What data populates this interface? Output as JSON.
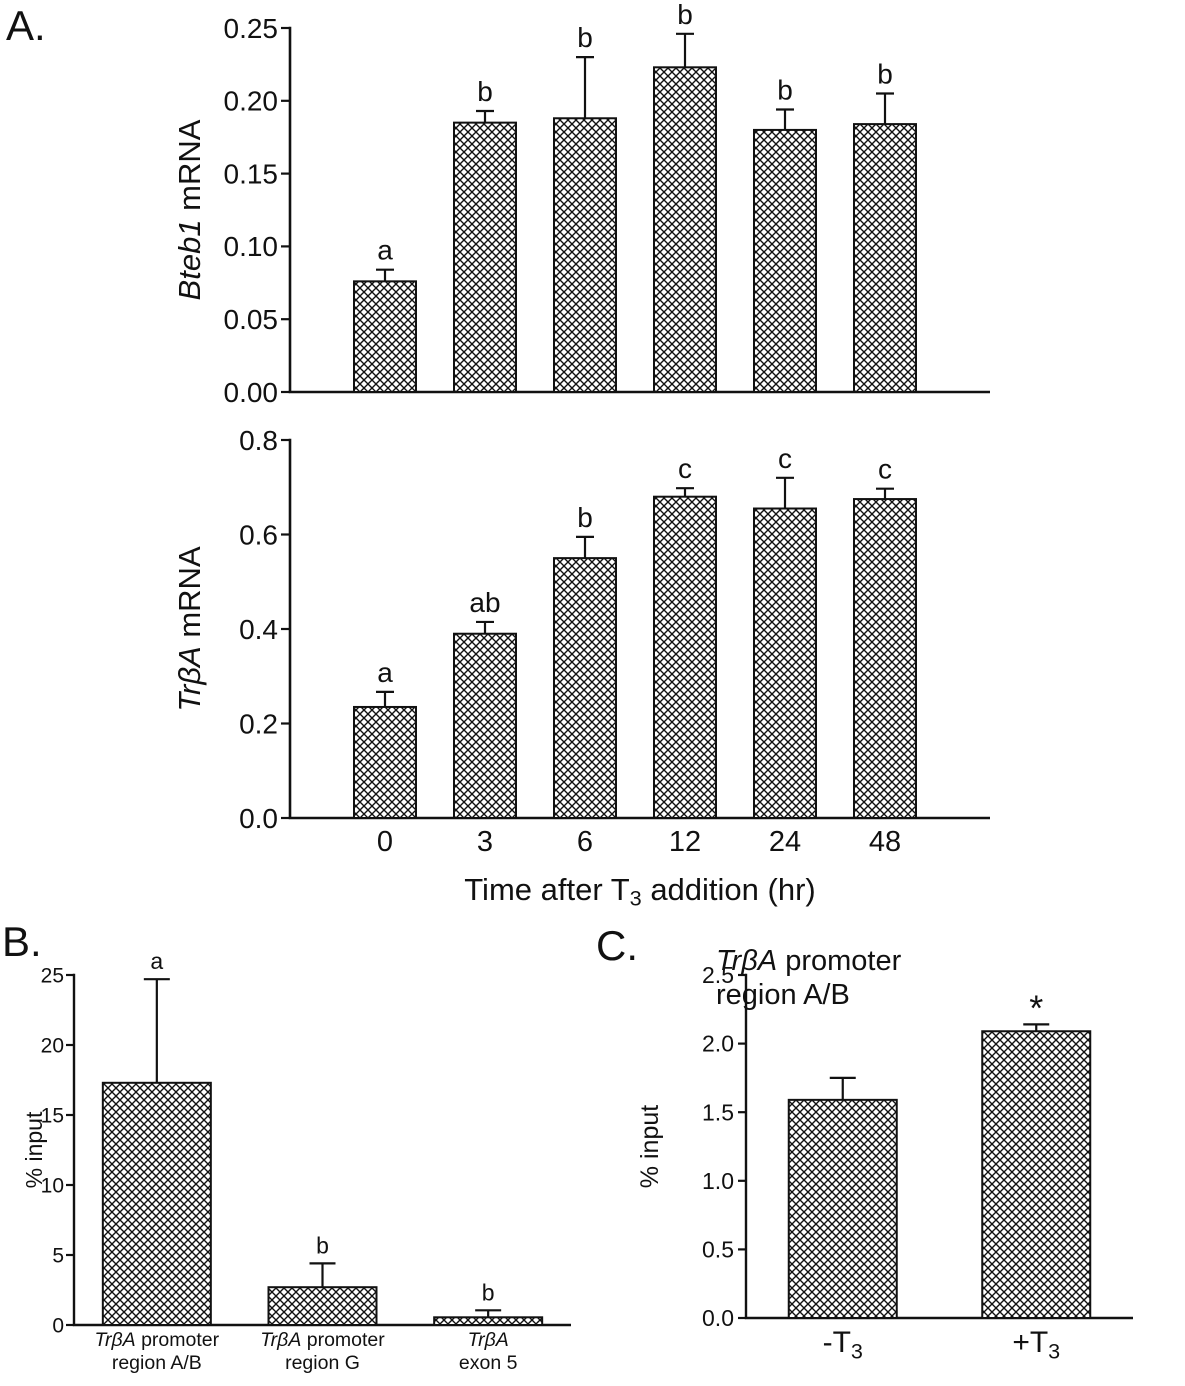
{
  "panels": {
    "a_label": "A.",
    "b_label": "B.",
    "c_label": "C."
  },
  "colors": {
    "ink": "#111111",
    "background": "#ffffff",
    "bar_fill": "black-white-crosshatch"
  },
  "chart_data": [
    {
      "id": "bteb1_mrna",
      "type": "bar",
      "panel": "A",
      "categories": [
        "0",
        "3",
        "6",
        "12",
        "24",
        "48"
      ],
      "values": [
        0.076,
        0.185,
        0.188,
        0.223,
        0.18,
        0.184
      ],
      "errors": [
        0.008,
        0.008,
        0.042,
        0.023,
        0.014,
        0.021
      ],
      "letters": [
        "a",
        "b",
        "b",
        "b",
        "b",
        "b"
      ],
      "ylabel_segments": [
        {
          "t": "Bteb1",
          "i": true
        },
        {
          "t": " mRNA"
        }
      ],
      "ylim": [
        0,
        0.25
      ],
      "ytick_step": 0.05,
      "ytick_decimals": 2,
      "show_x_labels": false,
      "grid": false,
      "legend": "none"
    },
    {
      "id": "trba_mrna",
      "type": "bar",
      "panel": "A",
      "categories": [
        "0",
        "3",
        "6",
        "12",
        "24",
        "48"
      ],
      "values": [
        0.235,
        0.39,
        0.55,
        0.68,
        0.655,
        0.675
      ],
      "errors": [
        0.032,
        0.025,
        0.045,
        0.018,
        0.065,
        0.022
      ],
      "letters": [
        "a",
        "ab",
        "b",
        "c",
        "c",
        "c"
      ],
      "ylabel_segments": [
        {
          "t": "TrβA",
          "i": true
        },
        {
          "t": " mRNA"
        }
      ],
      "xlabel_segments": [
        {
          "t": "Time after T"
        },
        {
          "t": "3",
          "sub": true
        },
        {
          "t": " addition (hr)"
        }
      ],
      "ylim": [
        0,
        0.8
      ],
      "ytick_step": 0.2,
      "ytick_decimals": 1,
      "show_x_labels": true,
      "grid": false,
      "legend": "none"
    },
    {
      "id": "chip_regions",
      "type": "bar",
      "panel": "B",
      "categories": [
        [
          [
            {
              "t": "TrβA",
              "i": true
            },
            {
              "t": " promoter"
            }
          ],
          [
            {
              "t": "region A/B"
            }
          ]
        ],
        [
          [
            {
              "t": "TrβA",
              "i": true
            },
            {
              "t": " promoter"
            }
          ],
          [
            {
              "t": "region G"
            }
          ]
        ],
        [
          [
            {
              "t": "TrβA",
              "i": true
            }
          ],
          [
            {
              "t": "exon 5"
            }
          ]
        ]
      ],
      "values": [
        17.3,
        2.7,
        0.55
      ],
      "errors": [
        7.4,
        1.7,
        0.5
      ],
      "letters": [
        "a",
        "b",
        "b"
      ],
      "ylabel_segments": [
        {
          "t": "% input"
        }
      ],
      "ylim": [
        0,
        25
      ],
      "ytick_step": 5,
      "ytick_decimals": 0,
      "show_x_labels": true,
      "grid": false,
      "legend": "none"
    },
    {
      "id": "chip_t3",
      "type": "bar",
      "panel": "C",
      "title_lines": [
        [
          {
            "t": "TrβA",
            "i": true
          },
          {
            "t": " promoter"
          }
        ],
        [
          {
            "t": "region A/B"
          }
        ]
      ],
      "categories": [
        [
          [
            {
              "t": "-T"
            },
            {
              "t": "3",
              "sub": true
            }
          ]
        ],
        [
          [
            {
              "t": "+T"
            },
            {
              "t": "3",
              "sub": true
            }
          ]
        ]
      ],
      "values": [
        1.59,
        2.09
      ],
      "errors": [
        0.16,
        0.05
      ],
      "letters": [
        "",
        "*"
      ],
      "ylabel_segments": [
        {
          "t": "% input"
        }
      ],
      "ylim": [
        0,
        2.5
      ],
      "ytick_step": 0.5,
      "ytick_decimals": 1,
      "show_x_labels": true,
      "grid": false,
      "legend": "none"
    }
  ]
}
